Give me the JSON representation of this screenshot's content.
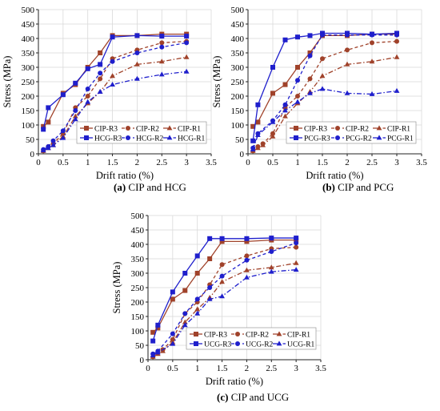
{
  "chart_data": [
    {
      "type": "line",
      "caption_letter": "(a)",
      "caption_text": " CIP and HCG",
      "xlabel": "Drift ratio (%)",
      "ylabel": "Stress (MPa)",
      "xlim": [
        0,
        3.5
      ],
      "ylim": [
        0,
        500
      ],
      "xticks": [
        0,
        0.5,
        1,
        1.5,
        2,
        2.5,
        3,
        3.5
      ],
      "yticks": [
        0,
        50,
        100,
        150,
        200,
        250,
        300,
        350,
        400,
        450,
        500
      ],
      "grid": true,
      "legend_position": "bottom-right",
      "series": [
        {
          "name": "CIP-R3",
          "color": "#A0422A",
          "dash": "solid",
          "marker": "square",
          "x": [
            0.1,
            0.2,
            0.5,
            0.75,
            1.0,
            1.25,
            1.5,
            2.0,
            2.5,
            3.0
          ],
          "y": [
            95,
            110,
            210,
            240,
            300,
            350,
            410,
            410,
            415,
            415
          ]
        },
        {
          "name": "CIP-R2",
          "color": "#A0422A",
          "dash": "dash",
          "marker": "circle",
          "x": [
            0.1,
            0.2,
            0.3,
            0.5,
            0.75,
            1.0,
            1.25,
            1.5,
            2.0,
            2.5,
            3.0
          ],
          "y": [
            10,
            25,
            35,
            70,
            160,
            200,
            260,
            330,
            360,
            385,
            390
          ]
        },
        {
          "name": "CIP-R1",
          "color": "#A0422A",
          "dash": "dashdot",
          "marker": "triangle",
          "x": [
            0.1,
            0.2,
            0.3,
            0.5,
            0.75,
            1.0,
            1.25,
            1.5,
            2.0,
            2.5,
            3.0
          ],
          "y": [
            10,
            20,
            30,
            60,
            130,
            175,
            215,
            270,
            310,
            320,
            335
          ]
        },
        {
          "name": "HCG-R3",
          "color": "#1F1FCC",
          "dash": "solid",
          "marker": "square",
          "x": [
            0.1,
            0.2,
            0.5,
            0.75,
            1.0,
            1.25,
            1.5,
            2.0,
            2.5,
            3.0
          ],
          "y": [
            85,
            160,
            205,
            245,
            295,
            310,
            405,
            410,
            408,
            408
          ]
        },
        {
          "name": "HCG-R2",
          "color": "#1F1FCC",
          "dash": "dash",
          "marker": "circle",
          "x": [
            0.1,
            0.2,
            0.3,
            0.5,
            0.75,
            1.0,
            1.25,
            1.5,
            2.0,
            2.5,
            3.0
          ],
          "y": [
            15,
            25,
            45,
            80,
            150,
            225,
            280,
            320,
            350,
            370,
            385
          ]
        },
        {
          "name": "HCG-R1",
          "color": "#1F1FCC",
          "dash": "dashdot",
          "marker": "triangle",
          "x": [
            0.1,
            0.2,
            0.3,
            0.5,
            0.75,
            1.0,
            1.25,
            1.5,
            2.0,
            2.5,
            3.0
          ],
          "y": [
            12,
            20,
            30,
            55,
            120,
            180,
            215,
            240,
            260,
            275,
            285
          ]
        }
      ]
    },
    {
      "type": "line",
      "caption_letter": "(b)",
      "caption_text": " CIP and PCG",
      "xlabel": "Drift ratio (%)",
      "ylabel": "Stress (MPa)",
      "xlim": [
        0,
        3.5
      ],
      "ylim": [
        0,
        500
      ],
      "xticks": [
        0,
        0.5,
        1,
        1.5,
        2,
        2.5,
        3,
        3.5
      ],
      "yticks": [
        0,
        50,
        100,
        150,
        200,
        250,
        300,
        350,
        400,
        450,
        500
      ],
      "grid": true,
      "legend_position": "bottom-right",
      "series": [
        {
          "name": "CIP-R3",
          "color": "#A0422A",
          "dash": "solid",
          "marker": "square",
          "x": [
            0.1,
            0.2,
            0.5,
            0.75,
            1.0,
            1.25,
            1.5,
            2.0,
            2.5,
            3.0
          ],
          "y": [
            95,
            110,
            210,
            240,
            300,
            350,
            410,
            410,
            415,
            415
          ]
        },
        {
          "name": "CIP-R2",
          "color": "#A0422A",
          "dash": "dash",
          "marker": "circle",
          "x": [
            0.1,
            0.2,
            0.3,
            0.5,
            0.75,
            1.0,
            1.25,
            1.5,
            2.0,
            2.5,
            3.0
          ],
          "y": [
            10,
            25,
            35,
            70,
            160,
            200,
            260,
            330,
            360,
            385,
            390
          ]
        },
        {
          "name": "CIP-R1",
          "color": "#A0422A",
          "dash": "dashdot",
          "marker": "triangle",
          "x": [
            0.1,
            0.2,
            0.3,
            0.5,
            0.75,
            1.0,
            1.25,
            1.5,
            2.0,
            2.5,
            3.0
          ],
          "y": [
            10,
            20,
            30,
            60,
            130,
            175,
            215,
            270,
            310,
            320,
            335
          ]
        },
        {
          "name": "PCG-R3",
          "color": "#1F1FCC",
          "dash": "solid",
          "marker": "square",
          "x": [
            0.1,
            0.2,
            0.5,
            0.75,
            1.0,
            1.25,
            1.5,
            2.0,
            2.5,
            3.0
          ],
          "y": [
            45,
            170,
            300,
            395,
            405,
            410,
            418,
            418,
            415,
            418
          ]
        },
        {
          "name": "PCG-R2",
          "color": "#1F1FCC",
          "dash": "dash",
          "marker": "circle",
          "x": [
            0.1,
            0.2,
            0.5,
            0.75,
            1.0,
            1.25,
            1.5,
            2.0,
            2.5,
            3.0
          ],
          "y": [
            20,
            70,
            115,
            170,
            255,
            340,
            412,
            412,
            412,
            412
          ]
        },
        {
          "name": "PCG-R1",
          "color": "#1F1FCC",
          "dash": "dashdot",
          "marker": "triangle",
          "x": [
            0.1,
            0.2,
            0.5,
            0.75,
            1.0,
            1.25,
            1.5,
            2.0,
            2.5,
            3.0
          ],
          "y": [
            15,
            65,
            110,
            150,
            180,
            210,
            225,
            210,
            207,
            218
          ]
        }
      ]
    },
    {
      "type": "line",
      "caption_letter": "(c)",
      "caption_text": " CIP and UCG",
      "xlabel": "Drift ratio (%)",
      "ylabel": "Stress (MPa)",
      "xlim": [
        0,
        3.5
      ],
      "ylim": [
        0,
        500
      ],
      "xticks": [
        0,
        0.5,
        1,
        1.5,
        2,
        2.5,
        3,
        3.5
      ],
      "yticks": [
        0,
        50,
        100,
        150,
        200,
        250,
        300,
        350,
        400,
        450,
        500
      ],
      "grid": true,
      "legend_position": "bottom-right",
      "series": [
        {
          "name": "CIP-R3",
          "color": "#A0422A",
          "dash": "solid",
          "marker": "square",
          "x": [
            0.1,
            0.2,
            0.5,
            0.75,
            1.0,
            1.25,
            1.5,
            2.0,
            2.5,
            3.0
          ],
          "y": [
            95,
            110,
            210,
            240,
            300,
            350,
            410,
            410,
            415,
            415
          ]
        },
        {
          "name": "CIP-R2",
          "color": "#A0422A",
          "dash": "dash",
          "marker": "circle",
          "x": [
            0.1,
            0.2,
            0.3,
            0.5,
            0.75,
            1.0,
            1.25,
            1.5,
            2.0,
            2.5,
            3.0
          ],
          "y": [
            10,
            25,
            35,
            70,
            160,
            200,
            260,
            330,
            360,
            385,
            390
          ]
        },
        {
          "name": "CIP-R1",
          "color": "#A0422A",
          "dash": "dashdot",
          "marker": "triangle",
          "x": [
            0.1,
            0.2,
            0.3,
            0.5,
            0.75,
            1.0,
            1.25,
            1.5,
            2.0,
            2.5,
            3.0
          ],
          "y": [
            10,
            20,
            30,
            60,
            130,
            175,
            215,
            270,
            310,
            320,
            335
          ]
        },
        {
          "name": "UCG-R3",
          "color": "#1F1FCC",
          "dash": "solid",
          "marker": "square",
          "x": [
            0.1,
            0.2,
            0.5,
            0.75,
            1.0,
            1.25,
            1.5,
            2.0,
            2.5,
            3.0
          ],
          "y": [
            65,
            120,
            235,
            300,
            360,
            420,
            420,
            420,
            422,
            422
          ]
        },
        {
          "name": "UCG-R2",
          "color": "#1F1FCC",
          "dash": "dash",
          "marker": "circle",
          "x": [
            0.1,
            0.2,
            0.5,
            0.75,
            1.0,
            1.25,
            1.5,
            2.0,
            2.5,
            3.0
          ],
          "y": [
            20,
            30,
            90,
            160,
            210,
            250,
            290,
            345,
            375,
            405
          ]
        },
        {
          "name": "UCG-R1",
          "color": "#1F1FCC",
          "dash": "dashdot",
          "marker": "triangle",
          "x": [
            0.1,
            0.2,
            0.5,
            0.75,
            1.0,
            1.25,
            1.5,
            2.0,
            2.5,
            3.0
          ],
          "y": [
            15,
            25,
            55,
            120,
            160,
            210,
            220,
            285,
            305,
            312
          ]
        }
      ]
    }
  ]
}
